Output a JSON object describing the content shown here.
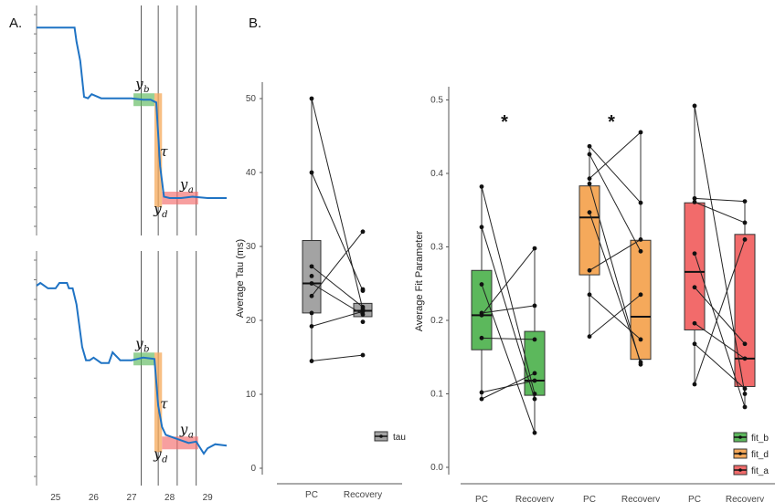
{
  "panel_a": {
    "label": "A.",
    "x_ticks": [
      "25",
      "26",
      "27",
      "28",
      "29"
    ],
    "annotations": {
      "y": "y",
      "b": "b",
      "tau": "τ",
      "a": "a",
      "d": "d"
    }
  },
  "panel_b": {
    "label": "B."
  },
  "colors": {
    "trace": "#1f73c4",
    "fit_b": "#5cb85c",
    "fit_d": "#f5a95b",
    "fit_a": "#f26b6b",
    "tau": "#a3a3a3"
  },
  "chart_data": [
    {
      "type": "line",
      "title": "",
      "xlabel": "",
      "ylabel": "",
      "x_ticks": [
        25,
        26,
        27,
        28,
        29
      ],
      "xlim": [
        24.5,
        29.5
      ],
      "series": [
        {
          "x": [
            24.5,
            25.0,
            25.5,
            25.55,
            25.65,
            25.75,
            25.85,
            25.95,
            26.2,
            26.6,
            27.0,
            27.3,
            27.5,
            27.65,
            27.75,
            27.85,
            28.0,
            28.3,
            28.6,
            29.0,
            29.5
          ],
          "y": [
            9.0,
            9.0,
            9.0,
            8.5,
            7.8,
            6.5,
            6.45,
            6.6,
            6.45,
            6.45,
            6.45,
            6.4,
            6.4,
            6.3,
            4.0,
            2.9,
            2.85,
            2.85,
            2.9,
            2.85,
            2.85
          ]
        }
      ],
      "markers": {
        "vlines": [
          27.25,
          27.7,
          28.2,
          28.7
        ]
      }
    },
    {
      "type": "line",
      "title": "",
      "xlabel": "",
      "ylabel": "",
      "x_ticks": [
        25,
        26,
        27,
        28,
        29
      ],
      "xlim": [
        24.5,
        29.5
      ],
      "series": [
        {
          "x": [
            24.5,
            24.6,
            24.8,
            25.0,
            25.1,
            25.3,
            25.35,
            25.45,
            25.55,
            25.7,
            25.8,
            25.9,
            26.0,
            26.2,
            26.4,
            26.5,
            26.7,
            27.0,
            27.3,
            27.6,
            27.7,
            27.8,
            27.9,
            28.2,
            28.5,
            28.7,
            28.9,
            29.0,
            29.2,
            29.5
          ],
          "y": [
            8.5,
            8.6,
            8.4,
            8.4,
            8.6,
            8.6,
            8.4,
            8.4,
            7.8,
            6.2,
            5.7,
            5.7,
            5.8,
            5.6,
            5.6,
            6.0,
            5.7,
            5.7,
            5.8,
            5.75,
            4.0,
            3.2,
            2.9,
            2.75,
            2.6,
            2.65,
            2.2,
            2.4,
            2.55,
            2.5
          ]
        }
      ],
      "markers": {
        "vlines": [
          27.25,
          27.7,
          28.2,
          28.7
        ]
      }
    },
    {
      "type": "box",
      "title": "",
      "xlabel": "",
      "ylabel": "Average Tau (ms)",
      "ylim": [
        0,
        52
      ],
      "y_ticks": [
        0,
        10,
        20,
        30,
        40,
        50
      ],
      "categories": [
        "PC",
        "Recovery"
      ],
      "series": [
        {
          "name": "tau",
          "boxes": [
            {
              "category": "PC",
              "q1": 21,
              "median": 25,
              "q3": 30.8,
              "whisker_low": 14.5,
              "whisker_high": 50
            },
            {
              "category": "Recovery",
              "q1": 20.5,
              "median": 21.3,
              "q3": 22.3,
              "whisker_low": 20.5,
              "whisker_high": 22.3
            }
          ],
          "pairs": [
            [
              50,
              21.5
            ],
            [
              40,
              24
            ],
            [
              27.3,
              21.8
            ],
            [
              25,
              20.8
            ],
            [
              23.3,
              32
            ],
            [
              19.2,
              21.2
            ],
            [
              14.5,
              15.3
            ]
          ],
          "extra_points": [
            [
              0,
              26
            ],
            [
              0,
              21
            ],
            [
              1,
              24.2
            ],
            [
              1,
              19.8
            ]
          ]
        }
      ]
    },
    {
      "type": "box",
      "title": "",
      "xlabel": "",
      "ylabel": "Average Fit Parameter",
      "ylim": [
        0,
        0.51
      ],
      "y_ticks": [
        0.0,
        0.1,
        0.2,
        0.3,
        0.4,
        0.5
      ],
      "categories": [
        "PC",
        "Recovery",
        "PC",
        "Recovery",
        "PC",
        "Recovery"
      ],
      "significance": [
        "*",
        "*",
        ""
      ],
      "series": [
        {
          "name": "fit_b",
          "boxes": [
            {
              "category": "PC",
              "q1": 0.16,
              "median": 0.207,
              "q3": 0.268,
              "whisker_low": 0.093,
              "whisker_high": 0.382
            },
            {
              "category": "Recovery",
              "q1": 0.098,
              "median": 0.118,
              "q3": 0.185,
              "whisker_low": 0.047,
              "whisker_high": 0.298
            }
          ],
          "pairs": [
            [
              0.382,
              0.1
            ],
            [
              0.327,
              0.093
            ],
            [
              0.249,
              0.047
            ],
            [
              0.21,
              0.22
            ],
            [
              0.207,
              0.298
            ],
            [
              0.176,
              0.174
            ],
            [
              0.102,
              0.118
            ],
            [
              0.093,
              0.128
            ]
          ]
        },
        {
          "name": "fit_d",
          "boxes": [
            {
              "category": "PC",
              "q1": 0.262,
              "median": 0.34,
              "q3": 0.383,
              "whisker_low": 0.178,
              "whisker_high": 0.437
            },
            {
              "category": "Recovery",
              "q1": 0.147,
              "median": 0.205,
              "q3": 0.309,
              "whisker_low": 0.138,
              "whisker_high": 0.456
            }
          ],
          "pairs": [
            [
              0.437,
              0.36
            ],
            [
              0.426,
              0.294
            ],
            [
              0.393,
              0.456
            ],
            [
              0.386,
              0.14
            ],
            [
              0.347,
              0.143
            ],
            [
              0.268,
              0.31
            ],
            [
              0.235,
              0.174
            ],
            [
              0.178,
              0.235
            ]
          ]
        },
        {
          "name": "fit_a",
          "boxes": [
            {
              "category": "PC",
              "q1": 0.187,
              "median": 0.266,
              "q3": 0.36,
              "whisker_low": 0.113,
              "whisker_high": 0.492
            },
            {
              "category": "Recovery",
              "q1": 0.11,
              "median": 0.148,
              "q3": 0.317,
              "whisker_low": 0.082,
              "whisker_high": 0.362
            }
          ],
          "pairs": [
            [
              0.492,
              0.1
            ],
            [
              0.366,
              0.362
            ],
            [
              0.361,
              0.333
            ],
            [
              0.291,
              0.082
            ],
            [
              0.245,
              0.168
            ],
            [
              0.196,
              0.148
            ],
            [
              0.168,
              0.107
            ],
            [
              0.113,
              0.31
            ]
          ]
        }
      ],
      "legend": {
        "position": "bottom-right",
        "entries": [
          "fit_b",
          "fit_d",
          "fit_a"
        ]
      }
    }
  ]
}
